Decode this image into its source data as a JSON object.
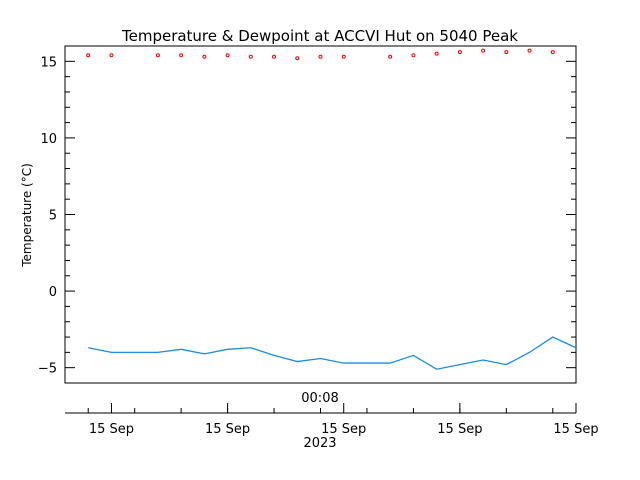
{
  "chart_data": {
    "type": "line",
    "title": "Temperature & Dewpoint at ACCVI Hut on 5040 Peak",
    "ylabel": "Temperature (°C)",
    "xlabel": "",
    "ylim": [
      -6,
      16
    ],
    "yticks": [
      -5,
      0,
      5,
      10,
      15
    ],
    "xlim": [
      0,
      22
    ],
    "time_label": "00:08",
    "year_label": "2023",
    "xtick_positions": [
      2,
      7,
      12,
      17,
      22
    ],
    "xtick_labels": [
      "15 Sep",
      "15 Sep",
      "15 Sep",
      "15 Sep",
      "15 Sep"
    ],
    "grid": false,
    "series": [
      {
        "role": "temperature",
        "color": "#ff0000",
        "style": "points",
        "x": [
          1,
          2,
          4,
          5,
          6,
          7,
          8,
          9,
          10,
          11,
          12,
          14,
          15,
          16,
          17,
          18,
          19,
          20,
          21
        ],
        "values": [
          15.4,
          15.4,
          15.4,
          15.4,
          15.3,
          15.4,
          15.3,
          15.3,
          15.2,
          15.3,
          15.3,
          15.3,
          15.4,
          15.5,
          15.6,
          15.7,
          15.6,
          15.7,
          15.6
        ]
      },
      {
        "role": "dewpoint",
        "color": "#1c8ce0",
        "style": "line",
        "x": [
          1,
          2,
          4,
          5,
          6,
          7,
          8,
          9,
          10,
          11,
          12,
          14,
          15,
          16,
          17,
          18,
          19,
          20,
          21,
          22
        ],
        "values": [
          -3.7,
          -4.0,
          -4.0,
          -3.8,
          -4.1,
          -3.8,
          -3.7,
          -4.2,
          -4.6,
          -4.4,
          -4.7,
          -4.7,
          -4.2,
          -5.1,
          -4.8,
          -4.5,
          -4.8,
          -4.0,
          -3.0,
          -3.7
        ]
      }
    ]
  }
}
